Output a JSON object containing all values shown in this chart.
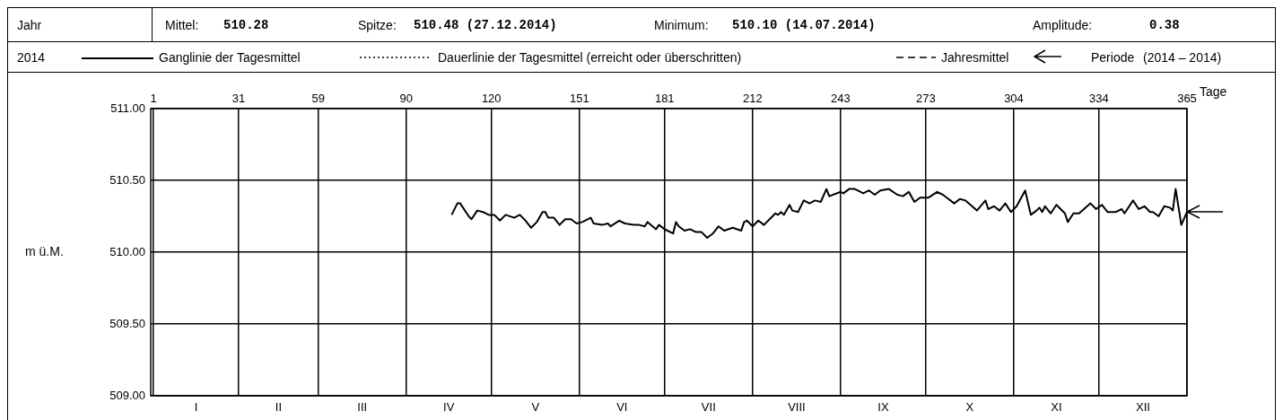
{
  "chart_data": {
    "type": "line",
    "annotations": [
      "Jahr",
      "Mittel:",
      "510.28",
      "Spitze:",
      "510.48 (27.12.2014)",
      "Minimum:",
      "510.10 (14.07.2014)",
      "Amplitude:",
      "0.38",
      "2014",
      "Dauerlinie der Tagesmittel (erreicht oder überschritten)",
      "Jahresmittel",
      "Periode",
      "(2014 – 2014)",
      "I",
      "II",
      "III",
      "IV",
      "V",
      "VI",
      "VII",
      "VIII",
      "IX",
      "X",
      "XI",
      "XII"
    ],
    "series": [
      {
        "x": [
          106,
          108,
          109,
          110,
          112,
          113,
          115,
          117,
          119,
          121,
          123,
          125,
          128,
          130,
          132,
          134,
          136,
          138,
          139,
          140,
          142,
          144,
          146,
          148,
          150,
          152,
          155,
          156,
          159,
          161,
          162,
          165,
          167,
          170,
          172,
          174,
          175,
          178,
          179,
          181,
          182,
          184,
          185,
          186,
          188,
          190,
          192,
          194,
          196,
          198,
          200,
          202,
          205,
          208,
          209,
          210,
          212,
          214,
          216,
          219,
          220,
          221,
          222,
          223,
          225,
          226,
          228,
          230,
          232,
          234,
          236,
          238,
          239,
          243,
          244,
          246,
          248,
          251,
          253,
          255,
          257,
          260,
          263,
          265,
          267,
          269,
          271,
          274,
          277,
          279,
          281,
          283,
          285,
          287,
          291,
          294,
          295,
          297,
          299,
          301,
          303,
          305,
          308,
          310,
          312,
          313,
          314,
          315,
          317,
          319,
          322,
          323,
          325,
          327,
          331,
          333,
          335,
          337,
          340,
          342,
          343,
          346,
          348,
          350,
          352,
          353,
          355,
          357,
          359,
          360,
          361,
          363,
          365
        ],
        "name": "Ganglinie der Tagesmittel",
        "color": "#000000",
        "line_style": "solid",
        "values": [
          510.26,
          510.34,
          510.34,
          510.31,
          510.25,
          510.23,
          510.29,
          510.28,
          510.26,
          510.26,
          510.22,
          510.26,
          510.24,
          510.26,
          510.22,
          510.17,
          510.21,
          510.28,
          510.28,
          510.24,
          510.24,
          510.19,
          510.23,
          510.23,
          510.2,
          510.21,
          510.24,
          510.2,
          510.19,
          510.2,
          510.18,
          510.22,
          510.2,
          510.19,
          510.19,
          510.18,
          510.21,
          510.16,
          510.19,
          510.16,
          510.15,
          510.13,
          510.21,
          510.18,
          510.15,
          510.16,
          510.14,
          510.14,
          510.1,
          510.13,
          510.18,
          510.15,
          510.17,
          510.15,
          510.21,
          510.22,
          510.18,
          510.22,
          510.19,
          510.25,
          510.27,
          510.26,
          510.28,
          510.26,
          510.33,
          510.29,
          510.28,
          510.36,
          510.34,
          510.36,
          510.35,
          510.44,
          510.39,
          510.42,
          510.41,
          510.44,
          510.44,
          510.41,
          510.43,
          510.4,
          510.43,
          510.44,
          510.4,
          510.39,
          510.42,
          510.35,
          510.38,
          510.38,
          510.42,
          510.4,
          510.37,
          510.34,
          510.37,
          510.36,
          510.29,
          510.36,
          510.3,
          510.32,
          510.29,
          510.34,
          510.28,
          510.32,
          510.43,
          510.26,
          510.29,
          510.31,
          510.28,
          510.32,
          510.27,
          510.33,
          510.27,
          510.21,
          510.27,
          510.27,
          510.34,
          510.3,
          510.33,
          510.28,
          510.28,
          510.3,
          510.27,
          510.36,
          510.3,
          510.32,
          510.28,
          510.28,
          510.25,
          510.32,
          510.31,
          510.29,
          510.44,
          510.19,
          510.28
        ]
      }
    ],
    "xlim": [
      0,
      365
    ],
    "xticks": [
      1,
      31,
      59,
      90,
      120,
      151,
      181,
      212,
      243,
      273,
      304,
      334,
      365
    ],
    "xlabel": "Tage",
    "ylim": [
      509,
      511
    ],
    "yticks": [
      {
        "value": 509,
        "label": "509.00"
      },
      {
        "value": 509.5,
        "label": "509.50"
      },
      {
        "value": 510,
        "label": "510.00"
      },
      {
        "value": 510.5,
        "label": "510.50"
      },
      {
        "value": 511,
        "label": "511.00"
      }
    ],
    "ylabel": "m ü.M.",
    "grid": true,
    "legend": "top",
    "marker": "none"
  }
}
